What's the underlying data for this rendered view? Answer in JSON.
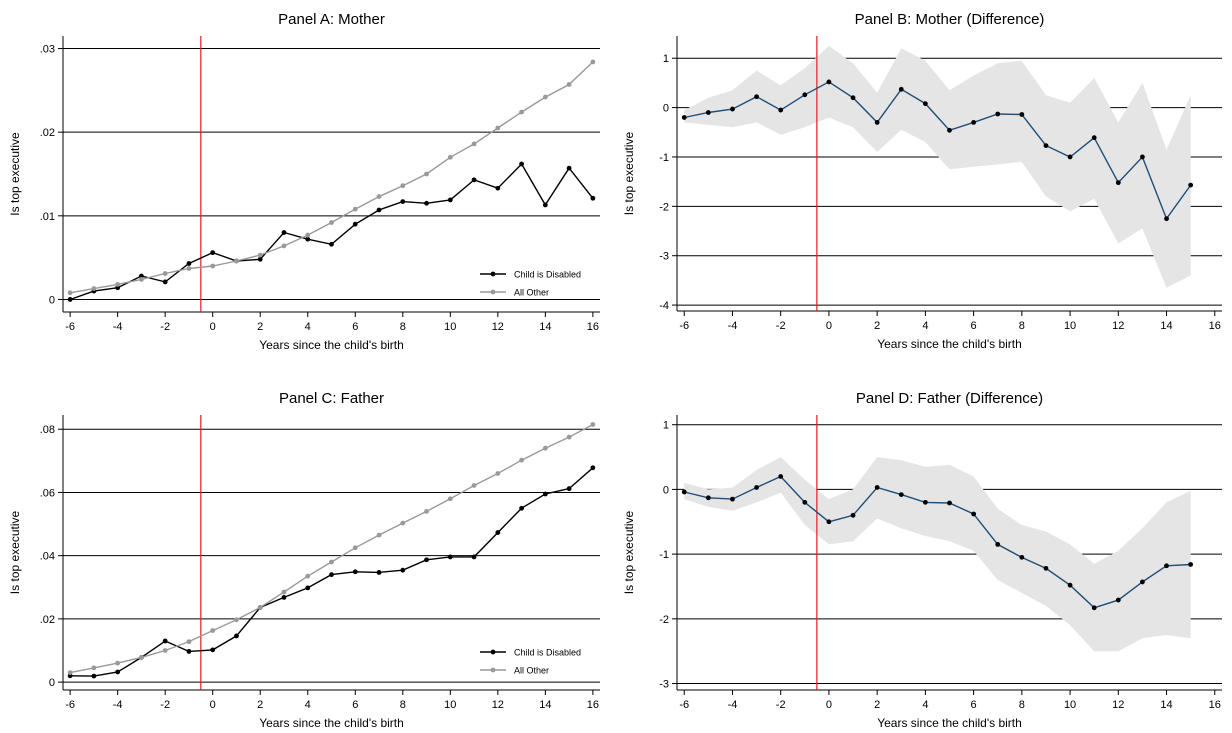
{
  "figure": {
    "background": "#ffffff",
    "line_color": "#000000",
    "event_line_color": "#e02020"
  },
  "chart_data": [
    {
      "id": "panel-a",
      "type": "line",
      "title": "Panel A: Mother",
      "xlabel": "Years since the child's birth",
      "ylabel": "Is top executive",
      "xlim": [
        -6.3,
        16.3
      ],
      "ylim": [
        -0.0015,
        0.0315
      ],
      "xticks": [
        -6,
        -4,
        -2,
        0,
        2,
        4,
        6,
        8,
        10,
        12,
        14,
        16
      ],
      "xtick_labels": [
        "-6",
        "-4",
        "-2",
        "0",
        "2",
        "4",
        "6",
        "8",
        "10",
        "12",
        "14",
        "16"
      ],
      "yticks": [
        0,
        0.01,
        0.02,
        0.03
      ],
      "ytick_labels": [
        "0",
        ".01",
        ".02",
        ".03"
      ],
      "grid": true,
      "event_line_x": -0.5,
      "legend_position": "bottom-right",
      "series": [
        {
          "name": "Child is Disabled",
          "color": "#000000",
          "x": [
            -6,
            -5,
            -4,
            -3,
            -2,
            -1,
            0,
            1,
            2,
            3,
            4,
            5,
            6,
            7,
            8,
            9,
            10,
            11,
            12,
            13,
            14,
            15,
            16
          ],
          "y": [
            0.0,
            0.001,
            0.0014,
            0.0028,
            0.0021,
            0.0043,
            0.0056,
            0.0046,
            0.0048,
            0.008,
            0.0072,
            0.0066,
            0.009,
            0.0107,
            0.0117,
            0.0115,
            0.0119,
            0.0143,
            0.0133,
            0.0162,
            0.0113,
            0.0157,
            0.0121
          ]
        },
        {
          "name": "All Other",
          "color": "#999999",
          "x": [
            -6,
            -5,
            -4,
            -3,
            -2,
            -1,
            0,
            1,
            2,
            3,
            4,
            5,
            6,
            7,
            8,
            9,
            10,
            11,
            12,
            13,
            14,
            15,
            16
          ],
          "y": [
            0.0008,
            0.0013,
            0.0018,
            0.0024,
            0.0031,
            0.0037,
            0.004,
            0.0046,
            0.0053,
            0.0064,
            0.0077,
            0.0092,
            0.0108,
            0.0123,
            0.0136,
            0.015,
            0.017,
            0.0186,
            0.0205,
            0.0224,
            0.0242,
            0.0257,
            0.0284
          ]
        }
      ]
    },
    {
      "id": "panel-b",
      "type": "line",
      "title": "Panel B: Mother (Difference)",
      "xlabel": "Years since the child's birth",
      "ylabel": "Is top executive",
      "xlim": [
        -6.3,
        16.3
      ],
      "ylim": [
        -4.12,
        1.45
      ],
      "xticks": [
        -6,
        -4,
        -2,
        0,
        2,
        4,
        6,
        8,
        10,
        12,
        14,
        16
      ],
      "xtick_labels": [
        "-6",
        "-4",
        "-2",
        "0",
        "2",
        "4",
        "6",
        "8",
        "10",
        "12",
        "14",
        "16"
      ],
      "yticks": [
        -4,
        -3,
        -2,
        -1,
        0,
        1
      ],
      "ytick_labels": [
        "-4",
        "-3",
        "-2",
        "-1",
        "0",
        "1"
      ],
      "grid": true,
      "event_line_x": -0.5,
      "band_color": "#e5e5e5",
      "series": [
        {
          "color": "#1f4e79",
          "x": [
            -6,
            -5,
            -4,
            -3,
            -2,
            -1,
            0,
            1,
            2,
            3,
            4,
            5,
            6,
            7,
            8,
            9,
            10,
            11,
            12,
            13,
            14,
            15
          ],
          "y": [
            -0.2,
            -0.1,
            -0.03,
            0.22,
            -0.05,
            0.26,
            0.52,
            0.2,
            -0.3,
            0.37,
            0.08,
            -0.46,
            -0.3,
            -0.13,
            -0.14,
            -0.77,
            -1.0,
            -0.61,
            -1.52,
            -1.0,
            -2.25,
            -1.57
          ],
          "lower": [
            -0.3,
            -0.35,
            -0.4,
            -0.3,
            -0.55,
            -0.4,
            -0.2,
            -0.4,
            -0.9,
            -0.45,
            -0.7,
            -1.25,
            -1.2,
            -1.15,
            -1.1,
            -1.8,
            -2.1,
            -1.85,
            -2.75,
            -2.45,
            -3.65,
            -3.4
          ],
          "upper": [
            -0.05,
            0.2,
            0.35,
            0.75,
            0.45,
            0.8,
            1.25,
            0.9,
            0.3,
            1.2,
            0.95,
            0.35,
            0.65,
            0.9,
            0.95,
            0.25,
            0.1,
            0.6,
            -0.3,
            0.5,
            -0.85,
            0.25
          ]
        }
      ]
    },
    {
      "id": "panel-c",
      "type": "line",
      "title": "Panel C: Father",
      "xlabel": "Years since the child's birth",
      "ylabel": "Is top executive",
      "xlim": [
        -6.3,
        16.3
      ],
      "ylim": [
        -0.0025,
        0.0845
      ],
      "xticks": [
        -6,
        -4,
        -2,
        0,
        2,
        4,
        6,
        8,
        10,
        12,
        14,
        16
      ],
      "xtick_labels": [
        "-6",
        "-4",
        "-2",
        "0",
        "2",
        "4",
        "6",
        "8",
        "10",
        "12",
        "14",
        "16"
      ],
      "yticks": [
        0,
        0.02,
        0.04,
        0.06,
        0.08
      ],
      "ytick_labels": [
        "0",
        ".02",
        ".04",
        ".06",
        ".08"
      ],
      "grid": true,
      "event_line_x": -0.5,
      "legend_position": "bottom-right",
      "series": [
        {
          "name": "Child is Disabled",
          "color": "#000000",
          "x": [
            -6,
            -5,
            -4,
            -3,
            -2,
            -1,
            0,
            1,
            2,
            3,
            4,
            5,
            6,
            7,
            8,
            9,
            10,
            11,
            12,
            13,
            14,
            15,
            16
          ],
          "y": [
            0.002,
            0.0019,
            0.0032,
            0.0078,
            0.013,
            0.0097,
            0.0102,
            0.0146,
            0.0236,
            0.0268,
            0.0298,
            0.034,
            0.0349,
            0.0347,
            0.0354,
            0.0387,
            0.0396,
            0.0396,
            0.0473,
            0.055,
            0.0595,
            0.0612,
            0.0678
          ]
        },
        {
          "name": "All Other",
          "color": "#999999",
          "x": [
            -6,
            -5,
            -4,
            -3,
            -2,
            -1,
            0,
            1,
            2,
            3,
            4,
            5,
            6,
            7,
            8,
            9,
            10,
            11,
            12,
            13,
            14,
            15,
            16
          ],
          "y": [
            0.003,
            0.0045,
            0.006,
            0.0078,
            0.01,
            0.0128,
            0.0163,
            0.0197,
            0.0236,
            0.0285,
            0.0335,
            0.038,
            0.0425,
            0.0465,
            0.0503,
            0.054,
            0.058,
            0.0622,
            0.066,
            0.0702,
            0.074,
            0.0775,
            0.0815
          ]
        }
      ]
    },
    {
      "id": "panel-d",
      "type": "line",
      "title": "Panel D: Father (Difference)",
      "xlabel": "Years since the child's birth",
      "ylabel": "Is top executive",
      "xlim": [
        -6.3,
        16.3
      ],
      "ylim": [
        -3.1,
        1.15
      ],
      "xticks": [
        -6,
        -4,
        -2,
        0,
        2,
        4,
        6,
        8,
        10,
        12,
        14,
        16
      ],
      "xtick_labels": [
        "-6",
        "-4",
        "-2",
        "0",
        "2",
        "4",
        "6",
        "8",
        "10",
        "12",
        "14",
        "16"
      ],
      "yticks": [
        -3,
        -2,
        -1,
        0,
        1
      ],
      "ytick_labels": [
        "-3",
        "-2",
        "-1",
        "0",
        "1"
      ],
      "grid": true,
      "event_line_x": -0.5,
      "band_color": "#e5e5e5",
      "series": [
        {
          "color": "#1f4e79",
          "x": [
            -6,
            -5,
            -4,
            -3,
            -2,
            -1,
            0,
            1,
            2,
            3,
            4,
            5,
            6,
            7,
            8,
            9,
            10,
            11,
            12,
            13,
            14,
            15
          ],
          "y": [
            -0.04,
            -0.13,
            -0.15,
            0.03,
            0.2,
            -0.2,
            -0.5,
            -0.4,
            0.03,
            -0.08,
            -0.2,
            -0.21,
            -0.38,
            -0.85,
            -1.05,
            -1.22,
            -1.48,
            -1.83,
            -1.71,
            -1.43,
            -1.18,
            -1.16
          ],
          "lower": [
            -0.15,
            -0.27,
            -0.33,
            -0.2,
            -0.05,
            -0.55,
            -0.85,
            -0.8,
            -0.45,
            -0.6,
            -0.72,
            -0.8,
            -0.95,
            -1.4,
            -1.6,
            -1.8,
            -2.1,
            -2.5,
            -2.5,
            -2.3,
            -2.25,
            -2.3
          ],
          "upper": [
            0.1,
            0.0,
            0.03,
            0.3,
            0.5,
            0.15,
            -0.15,
            0.0,
            0.5,
            0.45,
            0.35,
            0.38,
            0.2,
            -0.3,
            -0.55,
            -0.65,
            -0.85,
            -1.15,
            -0.95,
            -0.6,
            -0.2,
            -0.02
          ]
        }
      ]
    }
  ]
}
